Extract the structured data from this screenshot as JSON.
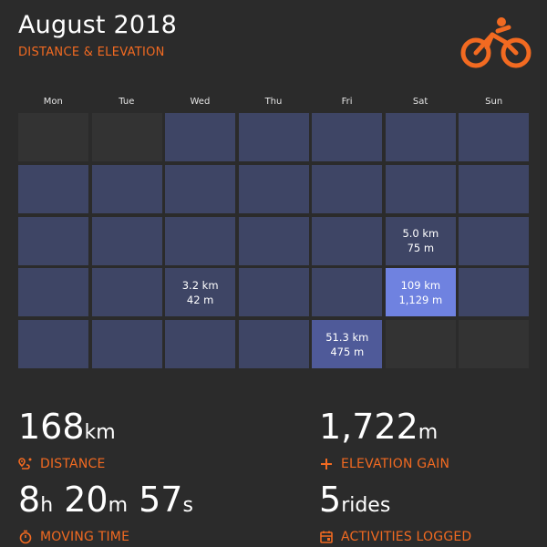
{
  "header": {
    "title": "August 2018",
    "subtitle": "DISTANCE & ELEVATION",
    "logo_icon": "cyclist-icon"
  },
  "calendar": {
    "weekdays": [
      "Mon",
      "Tue",
      "Wed",
      "Thu",
      "Fri",
      "Sat",
      "Sun"
    ],
    "weeks": [
      [
        {
          "state": "empty"
        },
        {
          "state": "empty"
        },
        {
          "state": "none"
        },
        {
          "state": "none"
        },
        {
          "state": "none"
        },
        {
          "state": "none"
        },
        {
          "state": "none"
        }
      ],
      [
        {
          "state": "none"
        },
        {
          "state": "none"
        },
        {
          "state": "none"
        },
        {
          "state": "none"
        },
        {
          "state": "none"
        },
        {
          "state": "none"
        },
        {
          "state": "none"
        }
      ],
      [
        {
          "state": "none"
        },
        {
          "state": "none"
        },
        {
          "state": "none"
        },
        {
          "state": "none"
        },
        {
          "state": "none"
        },
        {
          "state": "ride",
          "distance": "5.0 km",
          "elevation": "75 m",
          "level": "low"
        },
        {
          "state": "none"
        }
      ],
      [
        {
          "state": "none"
        },
        {
          "state": "none"
        },
        {
          "state": "ride",
          "distance": "3.2 km",
          "elevation": "42 m",
          "level": "low"
        },
        {
          "state": "none"
        },
        {
          "state": "none"
        },
        {
          "state": "ride",
          "distance": "109 km",
          "elevation": "1,129 m",
          "level": "high"
        },
        {
          "state": "none"
        }
      ],
      [
        {
          "state": "none"
        },
        {
          "state": "none"
        },
        {
          "state": "none"
        },
        {
          "state": "none"
        },
        {
          "state": "ride",
          "distance": "51.3 km",
          "elevation": "475 m",
          "level": "mid"
        },
        {
          "state": "empty"
        },
        {
          "state": "empty"
        }
      ]
    ]
  },
  "stats": {
    "distance": {
      "value": "168",
      "unit": "km",
      "label": "DISTANCE",
      "icon": "route-pin-icon"
    },
    "elevation": {
      "value": "1,722",
      "unit": "m",
      "label": "ELEVATION GAIN",
      "icon": "plus-icon"
    },
    "moving_time": {
      "h": "8",
      "h_unit": "h",
      "m": "20",
      "m_unit": "m",
      "s": "57",
      "s_unit": "s",
      "label": "MOVING TIME",
      "icon": "stopwatch-icon"
    },
    "activities": {
      "value": "5",
      "unit": "rides",
      "label": "ACTIVITIES LOGGED",
      "icon": "calendar-icon"
    }
  },
  "colors": {
    "accent": "#f26a21",
    "background": "#2b2b2b",
    "cell_default": "#3e4565",
    "cell_empty": "#333333",
    "cell_mid": "#4f5a99",
    "cell_high": "#6f82e0"
  }
}
